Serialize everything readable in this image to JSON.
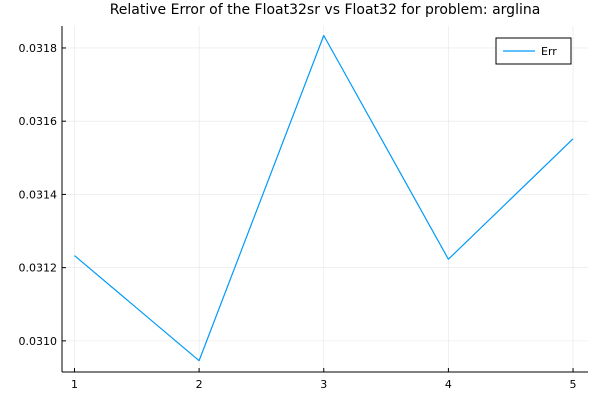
{
  "chart_data": {
    "type": "line",
    "title": "Relative Error of the Float32sr vs Float32 for problem: arglina",
    "xlabel": "",
    "ylabel": "",
    "x": [
      1,
      2,
      3,
      4,
      5
    ],
    "xticks": [
      1,
      2,
      3,
      4,
      5
    ],
    "yticks": [
      0.031,
      0.0312,
      0.0314,
      0.0316,
      0.0318
    ],
    "ytick_labels": [
      "0.0310",
      "0.0312",
      "0.0314",
      "0.0316",
      "0.0318"
    ],
    "xlim": [
      0.9,
      5.12
    ],
    "ylim": [
      0.030915,
      0.03186
    ],
    "grid": true,
    "legend_position": "top-right",
    "series": [
      {
        "name": "Err",
        "color": "#009AFA",
        "values": [
          0.031233,
          0.030946,
          0.031834,
          0.031223,
          0.031552
        ]
      }
    ]
  }
}
